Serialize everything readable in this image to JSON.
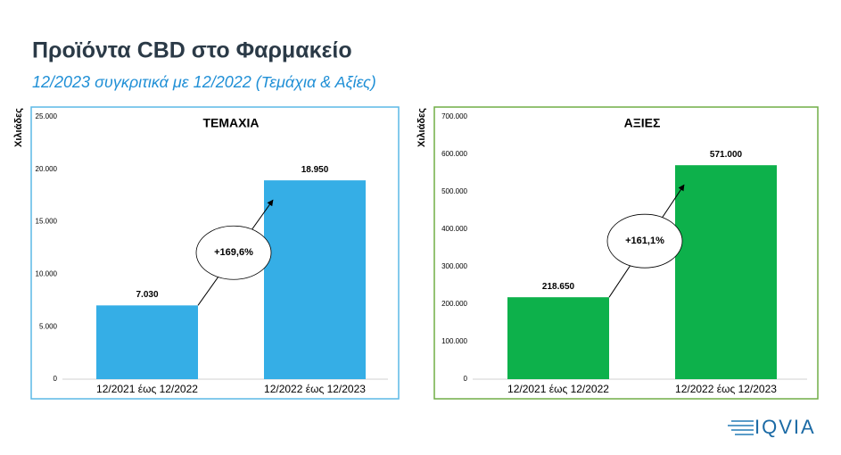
{
  "title": "Προϊόντα CBD στο Φαρμακείο",
  "subtitle": "12/2023 συγκριτικά με 12/2022 (Τεμάχια & Αξίες)",
  "logo": "IQVIA",
  "chart_data": [
    {
      "type": "bar",
      "title": "ΤΕΜΑΧΙΑ",
      "ylabel": "Χιλιάδες",
      "categories": [
        "12/2021 έως 12/2022",
        "12/2022 έως 12/2023"
      ],
      "values": [
        7030,
        18950
      ],
      "value_labels": [
        "7.030",
        "18.950"
      ],
      "color": "#35aee6",
      "frame_color": "#5bb8e6",
      "annotation": "+169,6%",
      "ylim": [
        0,
        25000
      ],
      "yticks": [
        0,
        {
          "value": 5000,
          "label": "5.000"
        },
        {
          "value": 10000,
          "label": "10.000"
        },
        {
          "value": 15000,
          "label": "15.000"
        },
        {
          "value": 20000,
          "label": "20.000"
        },
        {
          "value": 25000,
          "label": "25.000"
        }
      ]
    },
    {
      "type": "bar",
      "title": "ΑΞΙΕΣ",
      "ylabel": "Χιλιάδες",
      "categories": [
        "12/2021 έως 12/2022",
        "12/2022 έως 12/2023"
      ],
      "values": [
        218650,
        571000
      ],
      "value_labels": [
        "218.650",
        "571.000"
      ],
      "color": "#0db14b",
      "frame_color": "#70ad47",
      "annotation": "+161,1%",
      "ylim": [
        0,
        700000
      ],
      "yticks": [
        0,
        {
          "value": 100000,
          "label": "100.000"
        },
        {
          "value": 200000,
          "label": "200.000"
        },
        {
          "value": 300000,
          "label": "300.000"
        },
        {
          "value": 400000,
          "label": "400.000"
        },
        {
          "value": 500000,
          "label": "500.000"
        },
        {
          "value": 600000,
          "label": "600.000"
        },
        {
          "value": 700000,
          "label": "700.000"
        }
      ]
    }
  ]
}
